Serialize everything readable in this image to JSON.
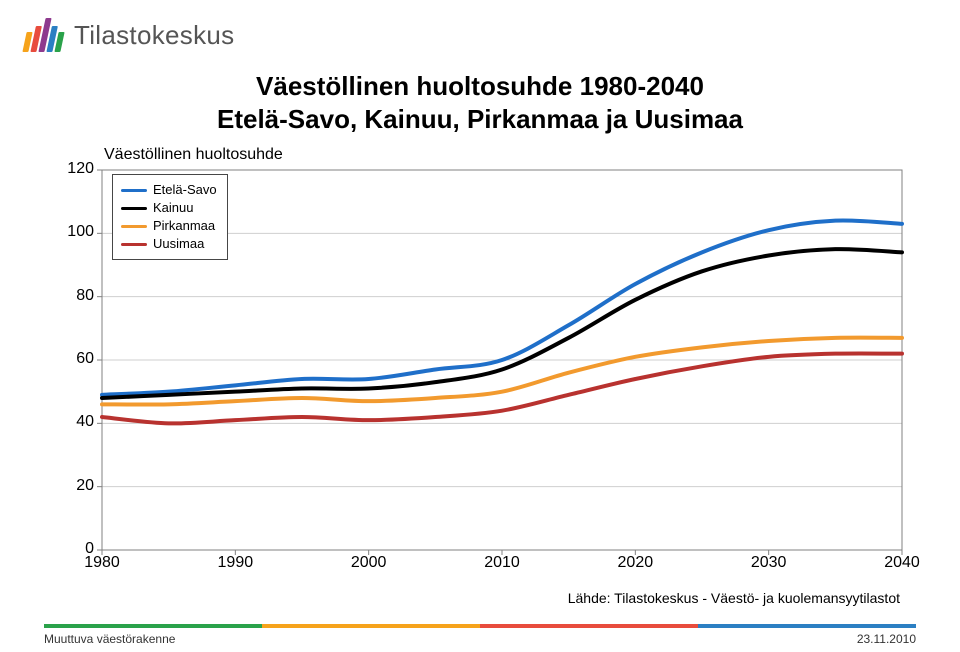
{
  "brand": {
    "name": "Tilastokeskus",
    "logo_colors": [
      "#f6a31b",
      "#e84c3d",
      "#8e3a8e",
      "#2b7fc3",
      "#2aa24a"
    ],
    "logo_heights": [
      20,
      26,
      34,
      26,
      20
    ]
  },
  "title": {
    "line1": "Väestöllinen huoltosuhde 1980-2040",
    "line2": "Etelä-Savo, Kainuu, Pirkanmaa ja Uusimaa",
    "fontsize": 26,
    "weight": "bold",
    "color": "#000000"
  },
  "chart": {
    "type": "line",
    "y_axis_title": "Väestöllinen huoltosuhde",
    "background_color": "#ffffff",
    "plot_border_color": "#808080",
    "grid_color": "#cfcfcf",
    "line_width": 4,
    "font_size_axis": 16,
    "xlim": [
      1980,
      2040
    ],
    "ylim": [
      0,
      120
    ],
    "xticks": [
      1980,
      1990,
      2000,
      2010,
      2020,
      2030,
      2040
    ],
    "yticks": [
      0,
      20,
      40,
      60,
      80,
      100,
      120
    ],
    "ytick_step": 20,
    "series": [
      {
        "name": "Etelä-Savo",
        "label": "Etelä-Savo",
        "color": "#1f6fc9",
        "x": [
          1980,
          1985,
          1990,
          1995,
          2000,
          2005,
          2010,
          2015,
          2020,
          2025,
          2030,
          2035,
          2040
        ],
        "y": [
          49,
          50,
          52,
          54,
          54,
          57,
          60,
          71,
          84,
          94,
          101,
          104,
          103
        ]
      },
      {
        "name": "Kainuu",
        "label": "Kainuu",
        "color": "#000000",
        "x": [
          1980,
          1985,
          1990,
          1995,
          2000,
          2005,
          2010,
          2015,
          2020,
          2025,
          2030,
          2035,
          2040
        ],
        "y": [
          48,
          49,
          50,
          51,
          51,
          53,
          57,
          67,
          79,
          88,
          93,
          95,
          94
        ]
      },
      {
        "name": "Pirkanmaa",
        "label": "Pirkanmaa",
        "color": "#f29a2e",
        "x": [
          1980,
          1985,
          1990,
          1995,
          2000,
          2005,
          2010,
          2015,
          2020,
          2025,
          2030,
          2035,
          2040
        ],
        "y": [
          46,
          46,
          47,
          48,
          47,
          48,
          50,
          56,
          61,
          64,
          66,
          67,
          67
        ]
      },
      {
        "name": "Uusimaa",
        "label": "Uusimaa",
        "color": "#b8322f",
        "x": [
          1980,
          1985,
          1990,
          1995,
          2000,
          2005,
          2010,
          2015,
          2020,
          2025,
          2030,
          2035,
          2040
        ],
        "y": [
          42,
          40,
          41,
          42,
          41,
          42,
          44,
          49,
          54,
          58,
          61,
          62,
          62
        ]
      }
    ],
    "legend": {
      "position": "upper-left-inside",
      "border": "#464646",
      "bg": "#ffffff",
      "font_size": 13
    }
  },
  "source": "Lähde: Tilastokeskus - Väestö- ja kuolemansyytilastot",
  "footer": {
    "text": "Muuttuva väestörakenne",
    "date": "23.11.2010",
    "bar_colors": [
      "#2aa24a",
      "#f6a31b",
      "#e84c3d",
      "#2b7fc3"
    ]
  }
}
